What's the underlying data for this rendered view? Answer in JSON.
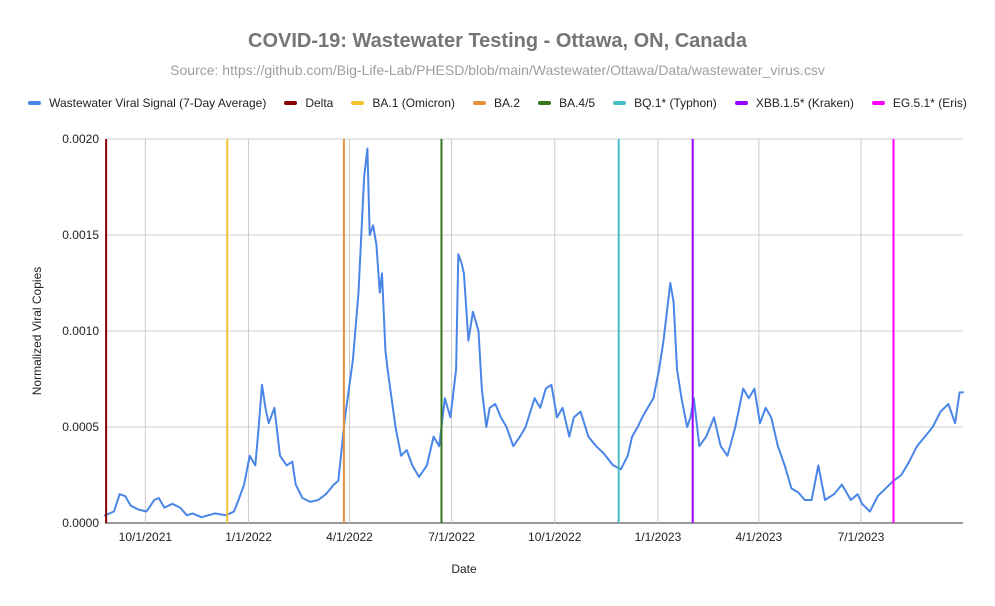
{
  "chart_data": {
    "type": "line",
    "title": "COVID-19: Wastewater Testing - Ottawa, ON, Canada",
    "subtitle": "Source: https://github.com/Big-Life-Lab/PHESD/blob/main/Wastewater/Ottawa/Data/wastewater_virus.csv",
    "xlabel": "Date",
    "ylabel": "Normalized Viral Copies",
    "ylim": [
      0,
      0.002
    ],
    "yticks": [
      {
        "value": 0,
        "label": "0.0000"
      },
      {
        "value": 0.0005,
        "label": "0.0005"
      },
      {
        "value": 0.001,
        "label": "0.0010"
      },
      {
        "value": 0.0015,
        "label": "0.0015"
      },
      {
        "value": 0.002,
        "label": "0.0020"
      }
    ],
    "xlim": [
      "2021-08-26",
      "2023-09-30"
    ],
    "xticks": [
      {
        "date": "2021-10-01",
        "label": "10/1/2021"
      },
      {
        "date": "2022-01-01",
        "label": "1/1/2022"
      },
      {
        "date": "2022-04-01",
        "label": "4/1/2022"
      },
      {
        "date": "2022-07-01",
        "label": "7/1/2022"
      },
      {
        "date": "2022-10-01",
        "label": "10/1/2022"
      },
      {
        "date": "2023-01-01",
        "label": "1/1/2023"
      },
      {
        "date": "2023-04-01",
        "label": "4/1/2023"
      },
      {
        "date": "2023-07-01",
        "label": "7/1/2023"
      }
    ],
    "grid": true,
    "series": [
      {
        "name": "Wastewater Viral Signal (7-Day Average)",
        "color": "#4a86e8",
        "x": [
          "2021-08-26",
          "2021-09-03",
          "2021-09-08",
          "2021-09-13",
          "2021-09-18",
          "2021-09-25",
          "2021-10-02",
          "2021-10-09",
          "2021-10-13",
          "2021-10-18",
          "2021-10-25",
          "2021-11-01",
          "2021-11-07",
          "2021-11-12",
          "2021-11-20",
          "2021-12-02",
          "2021-12-12",
          "2021-12-19",
          "2021-12-23",
          "2021-12-28",
          "2022-01-02",
          "2022-01-07",
          "2022-01-10",
          "2022-01-13",
          "2022-01-16",
          "2022-01-19",
          "2022-01-24",
          "2022-01-29",
          "2022-02-04",
          "2022-02-09",
          "2022-02-12",
          "2022-02-18",
          "2022-02-25",
          "2022-03-04",
          "2022-03-11",
          "2022-03-18",
          "2022-03-22",
          "2022-03-28",
          "2022-04-04",
          "2022-04-09",
          "2022-04-14",
          "2022-04-17",
          "2022-04-19",
          "2022-04-22",
          "2022-04-25",
          "2022-04-28",
          "2022-04-30",
          "2022-05-03",
          "2022-05-05",
          "2022-05-12",
          "2022-05-17",
          "2022-05-22",
          "2022-05-27",
          "2022-06-02",
          "2022-06-09",
          "2022-06-15",
          "2022-06-20",
          "2022-06-25",
          "2022-06-30",
          "2022-07-05",
          "2022-07-07",
          "2022-07-10",
          "2022-07-12",
          "2022-07-16",
          "2022-07-20",
          "2022-07-25",
          "2022-07-28",
          "2022-08-01",
          "2022-08-04",
          "2022-08-09",
          "2022-08-14",
          "2022-08-19",
          "2022-08-25",
          "2022-08-31",
          "2022-09-05",
          "2022-09-13",
          "2022-09-18",
          "2022-09-23",
          "2022-09-28",
          "2022-10-03",
          "2022-10-08",
          "2022-10-14",
          "2022-10-18",
          "2022-10-24",
          "2022-10-31",
          "2022-11-07",
          "2022-11-14",
          "2022-11-22",
          "2022-11-29",
          "2022-12-05",
          "2022-12-09",
          "2022-12-14",
          "2022-12-18",
          "2022-12-23",
          "2022-12-28",
          "2023-01-02",
          "2023-01-06",
          "2023-01-09",
          "2023-01-12",
          "2023-01-15",
          "2023-01-18",
          "2023-01-22",
          "2023-01-27",
          "2023-01-30",
          "2023-02-02",
          "2023-02-07",
          "2023-02-13",
          "2023-02-20",
          "2023-02-26",
          "2023-03-04",
          "2023-03-11",
          "2023-03-18",
          "2023-03-23",
          "2023-03-28",
          "2023-04-02",
          "2023-04-07",
          "2023-04-12",
          "2023-04-18",
          "2023-04-24",
          "2023-04-30",
          "2023-05-06",
          "2023-05-12",
          "2023-05-18",
          "2023-05-24",
          "2023-05-30",
          "2023-06-07",
          "2023-06-14",
          "2023-06-22",
          "2023-06-28",
          "2023-07-02",
          "2023-07-09",
          "2023-07-16",
          "2023-07-23",
          "2023-07-30",
          "2023-08-06",
          "2023-08-13",
          "2023-08-20",
          "2023-08-27",
          "2023-09-03",
          "2023-09-10",
          "2023-09-17",
          "2023-09-23",
          "2023-09-27",
          "2023-09-30"
        ],
        "values": [
          4e-05,
          6e-05,
          0.00015,
          0.00014,
          9e-05,
          7e-05,
          6e-05,
          0.00012,
          0.00013,
          8e-05,
          0.0001,
          8e-05,
          4e-05,
          5e-05,
          3e-05,
          5e-05,
          4e-05,
          6e-05,
          0.00012,
          0.0002,
          0.00035,
          0.0003,
          0.0005,
          0.00072,
          0.0006,
          0.00052,
          0.0006,
          0.00035,
          0.0003,
          0.00032,
          0.0002,
          0.00013,
          0.00011,
          0.00012,
          0.00015,
          0.0002,
          0.00022,
          0.00055,
          0.00085,
          0.0012,
          0.0018,
          0.00195,
          0.0015,
          0.00155,
          0.00145,
          0.0012,
          0.0013,
          0.0009,
          0.0008,
          0.0005,
          0.00035,
          0.00038,
          0.0003,
          0.00024,
          0.0003,
          0.00045,
          0.0004,
          0.00065,
          0.00055,
          0.0008,
          0.0014,
          0.00135,
          0.0013,
          0.00095,
          0.0011,
          0.001,
          0.0007,
          0.0005,
          0.0006,
          0.00062,
          0.00055,
          0.0005,
          0.0004,
          0.00045,
          0.0005,
          0.00065,
          0.0006,
          0.0007,
          0.00072,
          0.00055,
          0.0006,
          0.00045,
          0.00055,
          0.00058,
          0.00045,
          0.0004,
          0.00036,
          0.0003,
          0.00028,
          0.00035,
          0.00045,
          0.0005,
          0.00055,
          0.0006,
          0.00065,
          0.0008,
          0.00095,
          0.0011,
          0.00125,
          0.00115,
          0.0008,
          0.00065,
          0.0005,
          0.00055,
          0.00065,
          0.0004,
          0.00045,
          0.00055,
          0.0004,
          0.00035,
          0.0005,
          0.0007,
          0.00065,
          0.0007,
          0.00052,
          0.0006,
          0.00055,
          0.0004,
          0.0003,
          0.00018,
          0.00016,
          0.00012,
          0.00012,
          0.0003,
          0.00012,
          0.00015,
          0.0002,
          0.00012,
          0.00015,
          0.0001,
          6e-05,
          0.00014,
          0.00018,
          0.00022,
          0.00025,
          0.00032,
          0.0004,
          0.00045,
          0.0005,
          0.00058,
          0.00062,
          0.00052,
          0.00068,
          0.00068
        ]
      }
    ],
    "vlines": [
      {
        "name": "Delta",
        "date": "2021-08-27",
        "color": "#8b0000"
      },
      {
        "name": "BA.1 (Omicron)",
        "date": "2021-12-13",
        "color": "#f1c232"
      },
      {
        "name": "BA.2",
        "date": "2022-03-27",
        "color": "#e69138"
      },
      {
        "name": "BA.4/5",
        "date": "2022-06-22",
        "color": "#38761d"
      },
      {
        "name": "BQ.1* (Typhon)",
        "date": "2022-11-27",
        "color": "#46bdc6"
      },
      {
        "name": "XBB.1.5* (Kraken)",
        "date": "2023-02-01",
        "color": "#9900ff"
      },
      {
        "name": "EG.5.1* (Eris)",
        "date": "2023-07-30",
        "color": "#ff00ff"
      }
    ]
  }
}
